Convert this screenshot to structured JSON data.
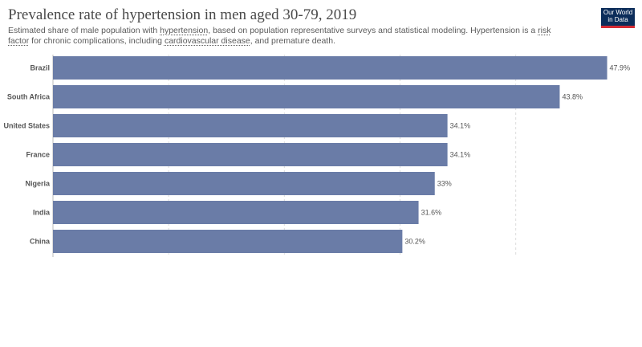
{
  "header": {
    "title": "Prevalence rate of hypertension in men aged 30-79, 2019",
    "subtitle_parts": [
      "Estimated share of male population with ",
      "hypertension",
      ", based on population representative surveys and statistical modeling. Hypertension is a ",
      "risk factor",
      " for chronic complications, including ",
      "cardiovascular disease",
      ", and premature death."
    ]
  },
  "logo": {
    "line1": "Our World",
    "line2": "in Data"
  },
  "colors": {
    "bar": "#6a7ca7",
    "grid": "#dcdcdc",
    "logo_bg": "#0c2d5a",
    "logo_accent": "#d42b34"
  },
  "chart_data": {
    "type": "bar",
    "orientation": "horizontal",
    "categories": [
      "Brazil",
      "South Africa",
      "United States",
      "France",
      "Nigeria",
      "India",
      "China"
    ],
    "values": [
      47.9,
      43.8,
      34.1,
      34.1,
      33,
      31.6,
      30.2
    ],
    "value_labels": [
      "47.9%",
      "43.8%",
      "34.1%",
      "34.1%",
      "33%",
      "31.6%",
      "30.2%"
    ],
    "xlim": [
      0,
      48
    ],
    "grid": true,
    "title": "Prevalence rate of hypertension in men aged 30-79, 2019"
  }
}
